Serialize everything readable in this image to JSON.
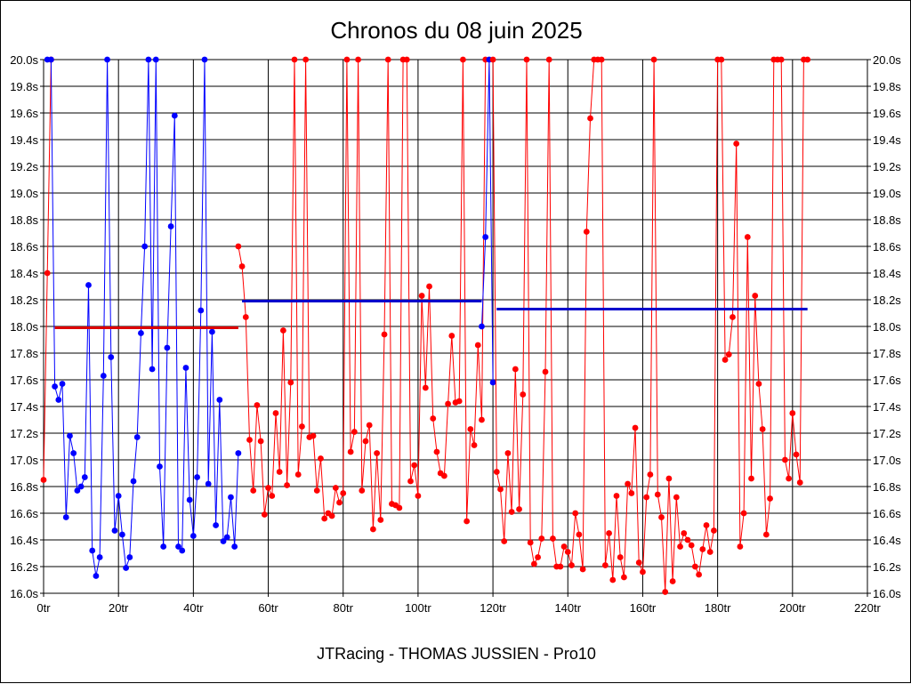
{
  "chart_data": {
    "type": "line",
    "title": "Chronos du 08 juin 2025",
    "footer": "JTRacing - THOMAS JUSSIEN - Pro10",
    "xlabel": "",
    "ylabel": "",
    "xlim": [
      0,
      220
    ],
    "ylim": [
      16.0,
      20.0
    ],
    "grid": true,
    "x_ticks": [
      0,
      20,
      40,
      60,
      80,
      100,
      120,
      140,
      160,
      180,
      200,
      220
    ],
    "x_tick_labels": [
      "0tr",
      "20tr",
      "40tr",
      "60tr",
      "80tr",
      "100tr",
      "120tr",
      "140tr",
      "160tr",
      "180tr",
      "200tr",
      "220tr"
    ],
    "y_ticks": [
      16.0,
      16.2,
      16.4,
      16.6,
      16.8,
      17.0,
      17.2,
      17.4,
      17.6,
      17.8,
      18.0,
      18.2,
      18.4,
      18.6,
      18.8,
      19.0,
      19.2,
      19.4,
      19.6,
      19.8,
      20.0
    ],
    "y_tick_labels": [
      "16.0s",
      "16.2s",
      "16.4s",
      "16.6s",
      "16.8s",
      "17.0s",
      "17.2s",
      "17.4s",
      "17.6s",
      "17.8s",
      "18.0s",
      "18.2s",
      "18.4s",
      "18.6s",
      "18.8s",
      "19.0s",
      "19.2s",
      "19.4s",
      "19.6s",
      "19.8s",
      "20.0s"
    ],
    "colors": {
      "red": "#ff0000",
      "blue": "#0000ff",
      "avg_red": "#dd0000",
      "avg_blue": "#0000cc",
      "grid": "#000000"
    },
    "series": [
      {
        "name": "session-1",
        "color": "red",
        "x": [
          0,
          1,
          2
        ],
        "y": [
          16.85,
          18.4,
          20.0
        ]
      },
      {
        "name": "session-2",
        "color": "blue",
        "x": [
          1,
          2,
          3,
          4,
          5,
          6,
          7,
          8,
          9,
          10,
          11,
          12,
          13,
          14,
          15,
          16,
          17,
          18,
          19,
          20,
          21,
          22,
          23,
          24,
          25,
          26,
          27,
          28,
          29,
          30,
          31,
          32,
          33,
          34,
          35,
          36,
          37,
          38,
          39,
          40,
          41,
          42,
          43,
          44,
          45,
          46,
          47,
          48,
          49,
          50,
          51,
          52
        ],
        "y": [
          20.0,
          20.0,
          17.55,
          17.45,
          17.57,
          16.57,
          17.18,
          17.05,
          16.77,
          16.8,
          16.87,
          18.31,
          16.32,
          16.13,
          16.27,
          17.63,
          20.0,
          17.77,
          16.47,
          16.73,
          16.44,
          16.19,
          16.27,
          16.84,
          17.17,
          17.95,
          18.6,
          20.0,
          17.68,
          20.0,
          16.95,
          16.35,
          17.84,
          18.75,
          19.58,
          16.35,
          16.32,
          17.69,
          16.7,
          16.43,
          16.87,
          18.12,
          20.0,
          16.82,
          17.96,
          16.51,
          17.45,
          16.39,
          16.42,
          16.72,
          16.35,
          17.05
        ]
      },
      {
        "name": "session-3",
        "color": "red",
        "x": [
          52,
          53,
          54,
          55,
          56,
          57,
          58,
          59,
          60,
          61,
          62,
          63,
          64,
          65,
          66,
          67,
          68,
          69,
          70,
          71,
          72,
          73,
          74,
          75,
          76,
          77,
          78,
          79,
          80,
          81,
          82,
          83,
          84,
          85,
          86,
          87,
          88,
          89,
          90,
          91,
          92,
          93,
          94,
          95,
          96,
          97,
          98,
          99,
          100,
          101,
          102,
          103,
          104,
          105,
          106,
          107,
          108,
          109,
          110,
          111,
          112,
          113,
          114,
          115,
          116,
          117,
          118
        ],
        "y": [
          18.6,
          18.45,
          18.07,
          17.15,
          16.77,
          17.41,
          17.14,
          16.59,
          16.79,
          16.73,
          17.35,
          16.91,
          17.97,
          16.81,
          17.58,
          20.0,
          16.89,
          17.25,
          20.0,
          17.17,
          17.18,
          16.77,
          17.01,
          16.56,
          16.6,
          16.58,
          16.79,
          16.68,
          16.75,
          20.0,
          17.06,
          17.21,
          20.0,
          16.77,
          17.14,
          17.26,
          16.48,
          17.05,
          16.55,
          17.94,
          20.0,
          16.67,
          16.66,
          16.64,
          20.0,
          20.0,
          16.84,
          16.96,
          16.73,
          18.23,
          17.54,
          18.3,
          17.31,
          17.06,
          16.9,
          16.88,
          17.42,
          17.93,
          17.43,
          17.44,
          20.0,
          16.54,
          17.23,
          17.11,
          17.86,
          17.3,
          20.0
        ]
      },
      {
        "name": "session-4",
        "color": "blue",
        "x": [
          117,
          118,
          119,
          120
        ],
        "y": [
          18.0,
          18.67,
          20.0,
          17.58
        ]
      },
      {
        "name": "session-5",
        "color": "red",
        "x": [
          120,
          121,
          122,
          123,
          124,
          125,
          126,
          127,
          128,
          129,
          130,
          131,
          132,
          133,
          134,
          135,
          136,
          137,
          138,
          139,
          140,
          141,
          142,
          143,
          144,
          145,
          146,
          147,
          148,
          149,
          150,
          151,
          152,
          153,
          154,
          155,
          156,
          157,
          158,
          159,
          160,
          161,
          162,
          163,
          164,
          165,
          166,
          167,
          168,
          169,
          170,
          171,
          172,
          173,
          174,
          175,
          176,
          177,
          178,
          179,
          180,
          181,
          182,
          183,
          184,
          185,
          186,
          187,
          188,
          189,
          190,
          191,
          192,
          193,
          194,
          195,
          196,
          197,
          198,
          199,
          200,
          201,
          202,
          203,
          204
        ],
        "y": [
          20.0,
          16.91,
          16.78,
          16.39,
          17.05,
          16.61,
          17.68,
          16.63,
          17.49,
          20.0,
          16.38,
          16.22,
          16.27,
          16.41,
          17.66,
          20.0,
          16.41,
          16.2,
          16.2,
          16.35,
          16.31,
          16.21,
          16.6,
          16.44,
          16.18,
          18.71,
          19.56,
          20.0,
          20.0,
          20.0,
          16.21,
          16.45,
          16.1,
          16.73,
          16.27,
          16.12,
          16.82,
          16.75,
          17.24,
          16.23,
          16.16,
          16.72,
          16.89,
          20.0,
          16.74,
          16.57,
          16.01,
          16.86,
          16.09,
          16.72,
          16.35,
          16.45,
          16.4,
          16.36,
          16.2,
          16.14,
          16.33,
          16.51,
          16.31,
          16.47,
          20.0,
          20.0,
          17.75,
          17.79,
          18.07,
          19.37,
          16.35,
          16.6,
          18.67,
          16.86,
          18.23,
          17.57,
          17.23,
          16.44,
          16.71,
          20.0,
          20.0,
          20.0,
          17.0,
          16.86,
          17.35,
          17.04,
          16.83,
          20.0,
          20.0
        ]
      }
    ],
    "averages": [
      {
        "color": "avg_red",
        "x": [
          3,
          52
        ],
        "y": 17.99
      },
      {
        "color": "avg_blue",
        "x": [
          53,
          117
        ],
        "y": 18.19
      },
      {
        "color": "avg_blue",
        "x": [
          121,
          204
        ],
        "y": 18.13
      }
    ]
  }
}
